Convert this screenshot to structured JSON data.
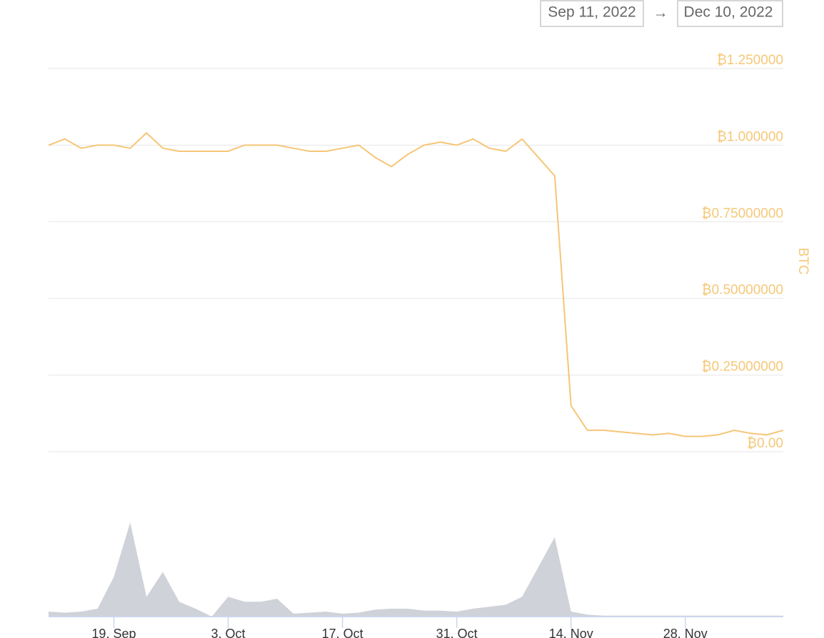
{
  "chart_data": {
    "type": "line",
    "date_range": {
      "from": "Sep 11, 2022",
      "separator": "→",
      "to": "Dec 10, 2022"
    },
    "ylabel": "BTC",
    "color": "#f6c677",
    "volume_color": "#cfd2d8",
    "grid": true,
    "x": [
      "2022-09-11",
      "2022-09-13",
      "2022-09-15",
      "2022-09-17",
      "2022-09-19",
      "2022-09-21",
      "2022-09-23",
      "2022-09-25",
      "2022-09-27",
      "2022-09-29",
      "2022-10-01",
      "2022-10-03",
      "2022-10-05",
      "2022-10-07",
      "2022-10-09",
      "2022-10-11",
      "2022-10-13",
      "2022-10-15",
      "2022-10-17",
      "2022-10-19",
      "2022-10-21",
      "2022-10-23",
      "2022-10-25",
      "2022-10-27",
      "2022-10-29",
      "2022-10-31",
      "2022-11-02",
      "2022-11-04",
      "2022-11-06",
      "2022-11-08",
      "2022-11-10",
      "2022-11-12",
      "2022-11-14",
      "2022-11-16",
      "2022-11-18",
      "2022-11-20",
      "2022-11-22",
      "2022-11-24",
      "2022-11-26",
      "2022-11-28",
      "2022-11-30",
      "2022-12-02",
      "2022-12-04",
      "2022-12-06",
      "2022-12-08",
      "2022-12-10"
    ],
    "values": [
      1.0,
      1.02,
      0.99,
      1.0,
      1.0,
      0.99,
      1.04,
      0.99,
      0.98,
      0.98,
      0.98,
      0.98,
      1.0,
      1.0,
      1.0,
      0.99,
      0.98,
      0.98,
      0.99,
      1.0,
      0.96,
      0.93,
      0.97,
      1.0,
      1.01,
      1.0,
      1.02,
      0.99,
      0.98,
      1.02,
      0.96,
      0.9,
      0.15,
      0.07,
      0.07,
      0.065,
      0.06,
      0.055,
      0.06,
      0.05,
      0.05,
      0.055,
      0.07,
      0.06,
      0.055,
      0.07
    ],
    "volume": [
      5,
      4,
      5,
      8,
      40,
      95,
      20,
      45,
      15,
      8,
      0,
      20,
      15,
      15,
      18,
      3,
      4,
      5,
      3,
      4,
      7,
      8,
      8,
      6,
      6,
      5,
      8,
      10,
      12,
      20,
      50,
      80,
      5,
      2,
      1,
      1,
      1,
      1,
      1,
      1,
      1,
      1,
      1,
      1,
      1,
      1
    ],
    "volume_lim": [
      0,
      100
    ],
    "xlim": [
      "2022-09-11",
      "2022-12-10"
    ],
    "xticks": [
      {
        "value": "2022-09-19",
        "label": "19. Sep"
      },
      {
        "value": "2022-10-03",
        "label": "3. Oct"
      },
      {
        "value": "2022-10-17",
        "label": "17. Oct"
      },
      {
        "value": "2022-10-31",
        "label": "31. Oct"
      },
      {
        "value": "2022-11-14",
        "label": "14. Nov"
      },
      {
        "value": "2022-11-28",
        "label": "28. Nov"
      }
    ],
    "ylim": [
      0,
      1.25
    ],
    "yticks": [
      {
        "value": 0,
        "label": "₿0.00"
      },
      {
        "value": 0.25,
        "label": "₿0.25000000"
      },
      {
        "value": 0.5,
        "label": "₿0.50000000"
      },
      {
        "value": 0.75,
        "label": "₿0.75000000"
      },
      {
        "value": 1,
        "label": "₿1.000000"
      },
      {
        "value": 1.25,
        "label": "₿1.250000"
      }
    ]
  }
}
